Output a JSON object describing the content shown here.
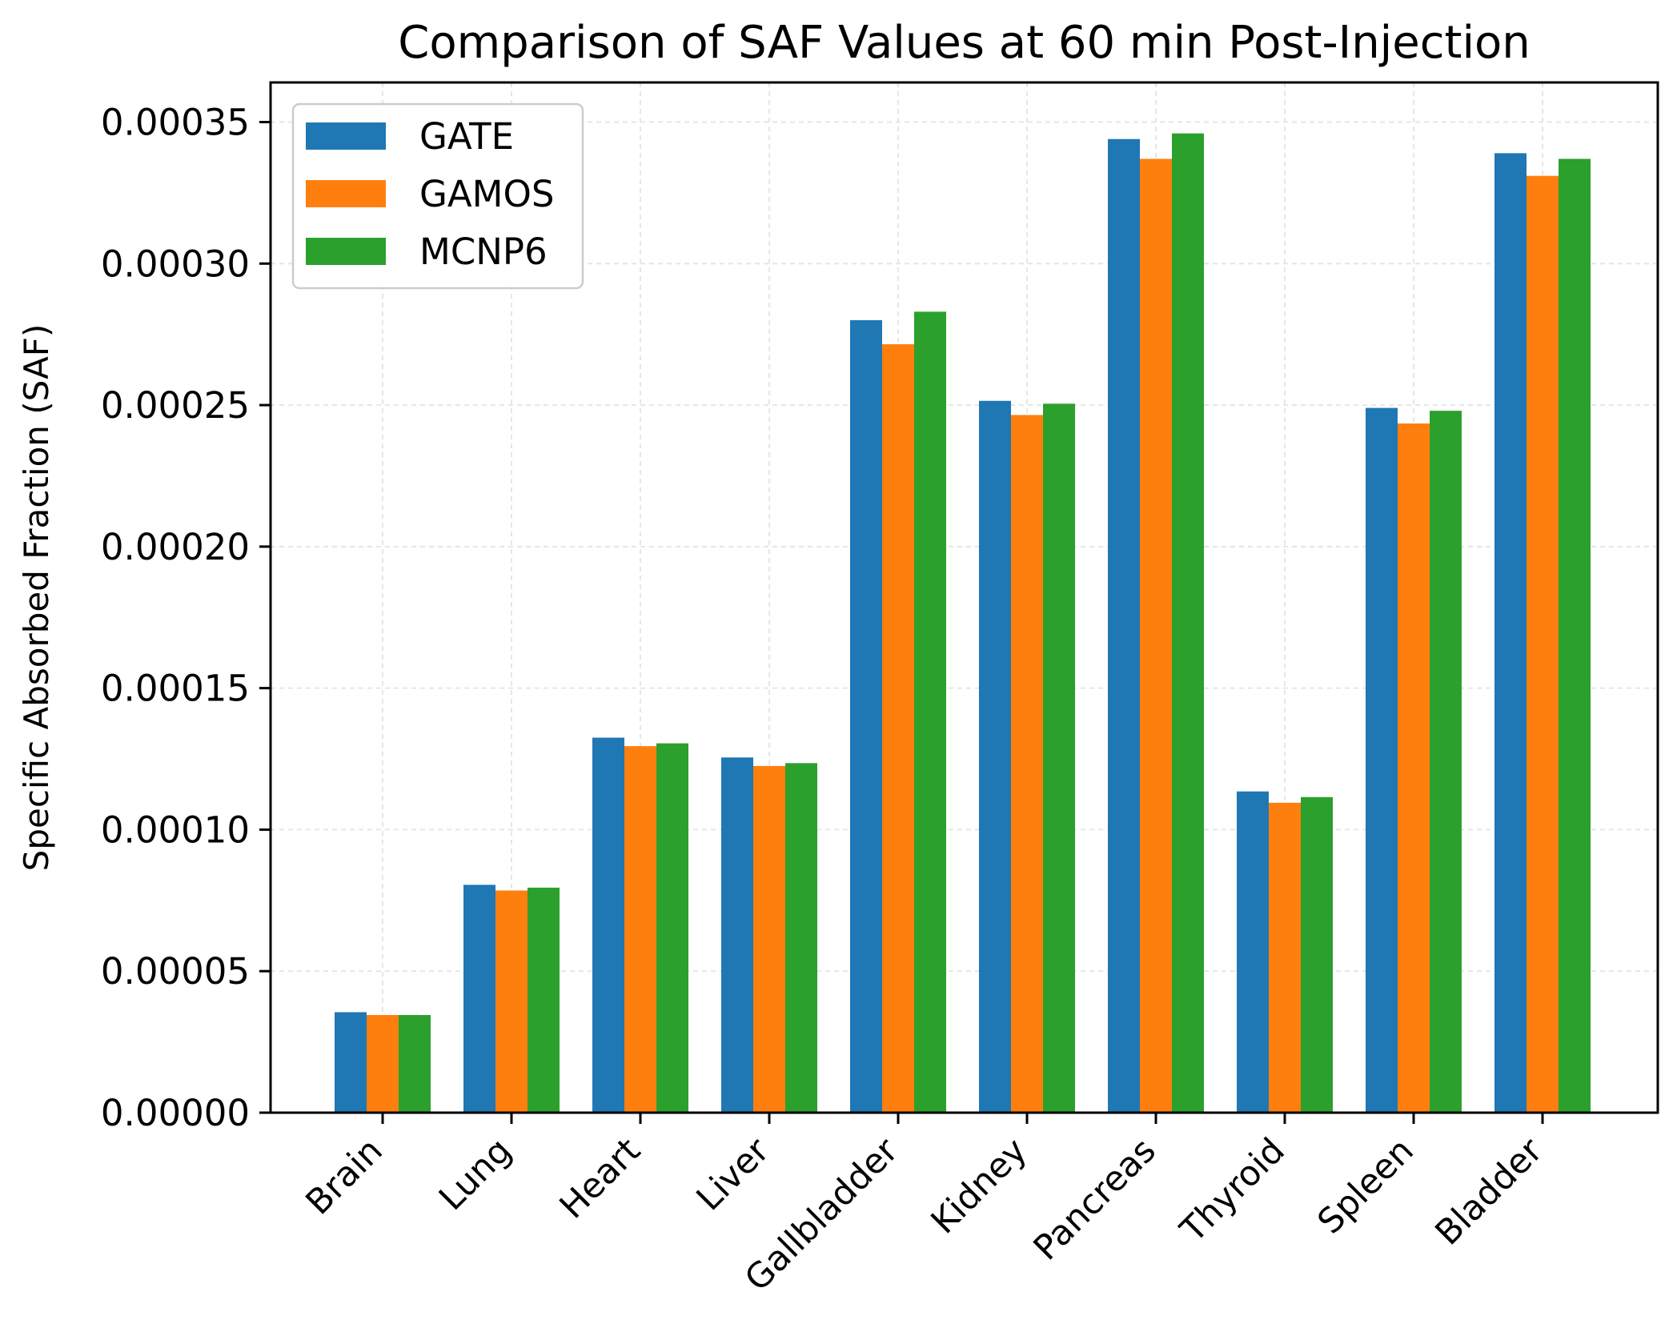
{
  "chart_data": {
    "type": "bar",
    "title": "Comparison of SAF Values at 60 min Post-Injection",
    "xlabel": "",
    "ylabel": "Specific Absorbed Fraction (SAF)",
    "ylim": [
      0,
      0.000364
    ],
    "yticks": [
      0,
      5e-05,
      0.0001,
      0.00015,
      0.0002,
      0.00025,
      0.0003,
      0.00035
    ],
    "ytick_labels": [
      "0.00000",
      "0.00005",
      "0.00010",
      "0.00015",
      "0.00020",
      "0.00025",
      "0.00030",
      "0.00035"
    ],
    "grid": true,
    "legend_position": "top-left",
    "categories": [
      "Brain",
      "Lung",
      "Heart",
      "Liver",
      "Gallbladder",
      "Kidney",
      "Pancreas",
      "Thyroid",
      "Spleen",
      "Bladder"
    ],
    "series": [
      {
        "name": "GATE",
        "color": "#1f77b4",
        "values": [
          3.55e-05,
          8.05e-05,
          0.0001325,
          0.0001255,
          0.00028,
          0.0002515,
          0.000344,
          0.0001135,
          0.000249,
          0.000339
        ]
      },
      {
        "name": "GAMOS",
        "color": "#ff7f0e",
        "values": [
          3.45e-05,
          7.85e-05,
          0.0001295,
          0.0001225,
          0.0002715,
          0.0002465,
          0.000337,
          0.0001095,
          0.0002435,
          0.000331
        ]
      },
      {
        "name": "MCNP6",
        "color": "#2ca02c",
        "values": [
          3.45e-05,
          7.95e-05,
          0.0001305,
          0.0001235,
          0.000283,
          0.0002505,
          0.000346,
          0.0001115,
          0.000248,
          0.000337
        ]
      }
    ]
  }
}
